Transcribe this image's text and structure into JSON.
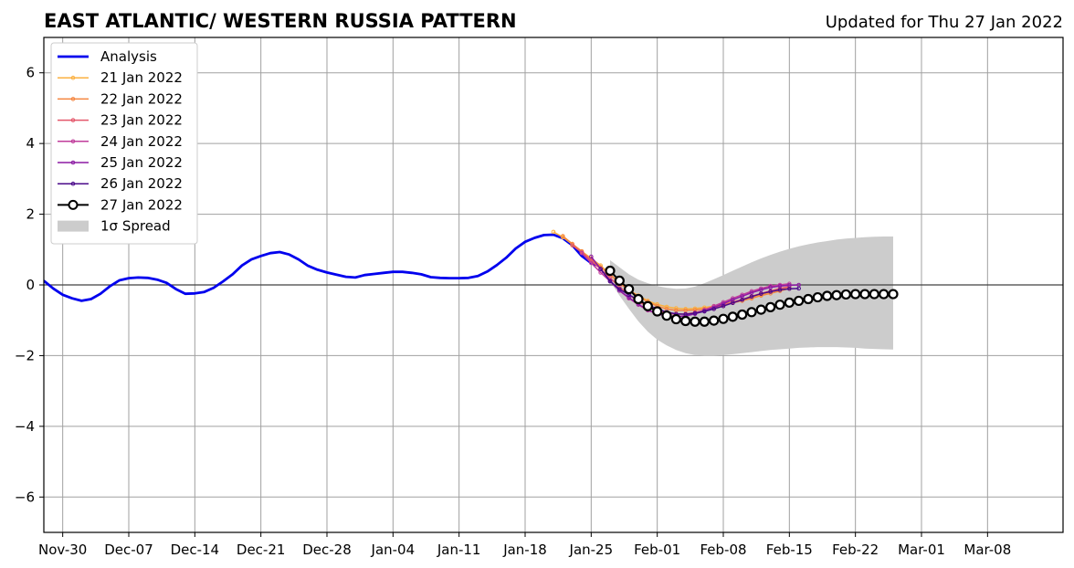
{
  "chart_data": {
    "type": "line",
    "title": "EAST ATLANTIC/ WESTERN RUSSIA PATTERN",
    "subtitle": "Updated for Thu 27 Jan 2022",
    "xlabel": "",
    "ylabel": "",
    "x_type": "date",
    "xlim": [
      "2021-11-28",
      "2022-03-16"
    ],
    "ylim": [
      -7,
      7
    ],
    "y_ticks": [
      -6,
      -4,
      -2,
      0,
      2,
      4,
      6
    ],
    "y_tick_labels": [
      "−6",
      "−4",
      "−2",
      "0",
      "2",
      "4",
      "6"
    ],
    "x_ticks": [
      "2021-11-30",
      "2021-12-07",
      "2021-12-14",
      "2021-12-21",
      "2021-12-28",
      "2022-01-04",
      "2022-01-11",
      "2022-01-18",
      "2022-01-25",
      "2022-02-01",
      "2022-02-08",
      "2022-02-15",
      "2022-02-22",
      "2022-03-01",
      "2022-03-08"
    ],
    "x_tick_labels": [
      "Nov-30",
      "Dec-07",
      "Dec-14",
      "Dec-21",
      "Dec-28",
      "Jan-04",
      "Jan-11",
      "Jan-18",
      "Jan-25",
      "Feb-01",
      "Feb-08",
      "Feb-15",
      "Feb-22",
      "Mar-01",
      "Mar-08"
    ],
    "grid": true,
    "legend_position": "top-left",
    "analysis": {
      "name": "Analysis",
      "color": "#0000ee",
      "start": "2021-11-28",
      "values": [
        0.12,
        -0.1,
        -0.28,
        -0.38,
        -0.45,
        -0.4,
        -0.25,
        -0.04,
        0.13,
        0.19,
        0.21,
        0.2,
        0.15,
        0.06,
        -0.12,
        -0.25,
        -0.24,
        -0.2,
        -0.08,
        0.1,
        0.3,
        0.55,
        0.72,
        0.82,
        0.9,
        0.93,
        0.86,
        0.72,
        0.54,
        0.43,
        0.35,
        0.29,
        0.23,
        0.21,
        0.28,
        0.31,
        0.34,
        0.37,
        0.37,
        0.34,
        0.3,
        0.22,
        0.2,
        0.19,
        0.19,
        0.2,
        0.25,
        0.38,
        0.56,
        0.77,
        1.03,
        1.22,
        1.33,
        1.41,
        1.42,
        1.32,
        1.12,
        0.82,
        0.62,
        0.52
      ]
    },
    "forecasts": [
      {
        "name": "21 Jan 2022",
        "color": "#fbb040",
        "start": "2022-01-21",
        "values": [
          1.5,
          1.35,
          1.15,
          0.95,
          0.75,
          0.55,
          0.3,
          0.05,
          -0.15,
          -0.3,
          -0.45,
          -0.55,
          -0.62,
          -0.66,
          -0.68,
          -0.67,
          -0.64,
          -0.6,
          -0.54,
          -0.48,
          -0.42,
          -0.35,
          -0.28,
          -0.2,
          -0.12,
          -0.06
        ]
      },
      {
        "name": "22 Jan 2022",
        "color": "#f5853f",
        "start": "2022-01-22",
        "values": [
          1.38,
          1.16,
          0.95,
          0.72,
          0.5,
          0.3,
          0.05,
          -0.15,
          -0.32,
          -0.48,
          -0.6,
          -0.68,
          -0.72,
          -0.72,
          -0.71,
          -0.68,
          -0.63,
          -0.57,
          -0.51,
          -0.45,
          -0.38,
          -0.3,
          -0.24,
          -0.17,
          -0.1
        ]
      },
      {
        "name": "23 Jan 2022",
        "color": "#e4566a",
        "start": "2022-01-23",
        "values": [
          1.12,
          0.92,
          0.68,
          0.45,
          0.2,
          -0.05,
          -0.28,
          -0.47,
          -0.62,
          -0.73,
          -0.8,
          -0.83,
          -0.82,
          -0.78,
          -0.72,
          -0.65,
          -0.57,
          -0.49,
          -0.41,
          -0.32,
          -0.24,
          -0.17,
          -0.1,
          -0.05
        ]
      },
      {
        "name": "24 Jan 2022",
        "color": "#c03c9b",
        "start": "2022-01-24",
        "values": [
          0.9,
          0.62,
          0.35,
          0.1,
          -0.16,
          -0.38,
          -0.56,
          -0.72,
          -0.82,
          -0.88,
          -0.9,
          -0.87,
          -0.8,
          -0.71,
          -0.6,
          -0.49,
          -0.38,
          -0.28,
          -0.18,
          -0.1,
          -0.03,
          0.0,
          0.03
        ]
      },
      {
        "name": "25 Jan 2022",
        "color": "#8c1aa3",
        "start": "2022-01-25",
        "values": [
          0.8,
          0.45,
          0.12,
          -0.16,
          -0.36,
          -0.55,
          -0.7,
          -0.82,
          -0.88,
          -0.9,
          -0.88,
          -0.82,
          -0.74,
          -0.64,
          -0.53,
          -0.42,
          -0.32,
          -0.22,
          -0.14,
          -0.07,
          -0.03,
          -0.01,
          0.0
        ]
      },
      {
        "name": "26 Jan 2022",
        "color": "#4a0a8a",
        "start": "2022-01-26",
        "values": [
          0.45,
          0.1,
          -0.12,
          -0.28,
          -0.43,
          -0.57,
          -0.68,
          -0.77,
          -0.82,
          -0.83,
          -0.8,
          -0.75,
          -0.68,
          -0.6,
          -0.51,
          -0.42,
          -0.33,
          -0.25,
          -0.19,
          -0.14,
          -0.11,
          -0.1
        ]
      },
      {
        "name": "27 Jan 2022",
        "color": "#000000",
        "start": "2022-01-27",
        "values": [
          0.4,
          0.12,
          -0.12,
          -0.4,
          -0.6,
          -0.75,
          -0.87,
          -0.97,
          -1.02,
          -1.04,
          -1.04,
          -1.01,
          -0.96,
          -0.9,
          -0.84,
          -0.77,
          -0.7,
          -0.63,
          -0.56,
          -0.5,
          -0.45,
          -0.4,
          -0.35,
          -0.31,
          -0.29,
          -0.27,
          -0.26,
          -0.26,
          -0.26,
          -0.26,
          -0.26
        ]
      }
    ],
    "spread": {
      "name": "1σ Spread",
      "color": "#cccccc",
      "start": "2022-01-27",
      "upper": [
        0.7,
        0.5,
        0.3,
        0.15,
        0.05,
        -0.03,
        -0.08,
        -0.11,
        -0.1,
        -0.05,
        0.05,
        0.16,
        0.28,
        0.4,
        0.52,
        0.64,
        0.75,
        0.85,
        0.94,
        1.02,
        1.09,
        1.15,
        1.2,
        1.24,
        1.28,
        1.31,
        1.33,
        1.35,
        1.36,
        1.37,
        1.37
      ],
      "lower": [
        0.1,
        -0.3,
        -0.68,
        -1.03,
        -1.32,
        -1.55,
        -1.71,
        -1.84,
        -1.93,
        -1.98,
        -2.0,
        -2.0,
        -1.98,
        -1.96,
        -1.93,
        -1.9,
        -1.87,
        -1.84,
        -1.82,
        -1.8,
        -1.78,
        -1.77,
        -1.76,
        -1.76,
        -1.76,
        -1.77,
        -1.78,
        -1.8,
        -1.81,
        -1.82,
        -1.83
      ]
    }
  }
}
